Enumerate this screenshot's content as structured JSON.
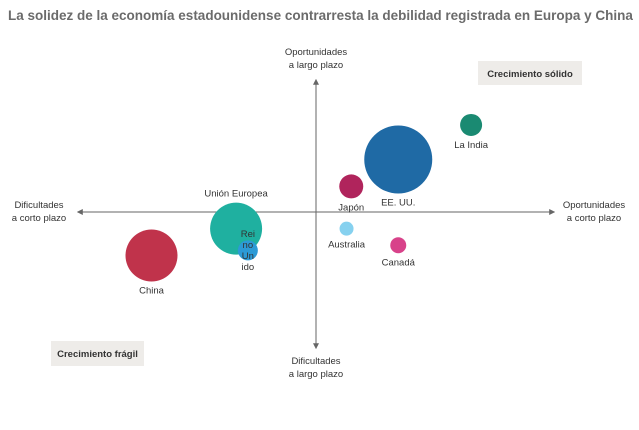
{
  "chart_data": {
    "type": "scatter",
    "title": "La solidez de la economía estadounidense contrarresta la debilidad registrada en Europa y China",
    "axes": {
      "up_line1": "Oportunidades",
      "up_line2": "a largo plazo",
      "down_line1": "Dificultades",
      "down_line2": "a largo plazo",
      "left_line1": "Dificultades",
      "left_line2": "a corto plazo",
      "right_line1": "Oportunidades",
      "right_line2": "a corto plazo"
    },
    "xlim": [
      -10,
      10
    ],
    "ylim": [
      -10,
      10
    ],
    "quadrant_labels": {
      "top_right": "Crecimiento sólido",
      "bottom_left": "Crecimiento frágil"
    },
    "points": [
      {
        "name": "La India",
        "label_lines": [
          "La India"
        ],
        "x": 6.6,
        "y": 6.8,
        "size": 11,
        "color": "#1a8a72",
        "label_pos": "below"
      },
      {
        "name": "EE. UU.",
        "label_lines": [
          "EE. UU."
        ],
        "x": 3.5,
        "y": 4.1,
        "size": 34,
        "color": "#1f6aa5",
        "label_pos": "below"
      },
      {
        "name": "Japón",
        "label_lines": [
          "Japón"
        ],
        "x": 1.5,
        "y": 2.0,
        "size": 12,
        "color": "#b0245c",
        "label_pos": "below"
      },
      {
        "name": "Australia",
        "label_lines": [
          "Australia"
        ],
        "x": 1.3,
        "y": -1.3,
        "size": 7,
        "color": "#86d1ef",
        "label_pos": "below"
      },
      {
        "name": "Canadá",
        "label_lines": [
          "Canadá"
        ],
        "x": 3.5,
        "y": -2.6,
        "size": 8,
        "color": "#d8428a",
        "label_pos": "below"
      },
      {
        "name": "Unión Europea",
        "label_lines": [
          "Unión Europea"
        ],
        "x": -3.4,
        "y": -1.3,
        "size": 26,
        "color": "#1fb0a0",
        "label_pos": "above"
      },
      {
        "name": "Reino Unido",
        "label_lines": [
          "Rei",
          "no",
          "Un",
          "ido"
        ],
        "x": -2.9,
        "y": -3.0,
        "size": 10,
        "color": "#2c9ad6",
        "label_pos": "center"
      },
      {
        "name": "China",
        "label_lines": [
          "China"
        ],
        "x": -7.0,
        "y": -3.4,
        "size": 26,
        "color": "#c0334b",
        "label_pos": "below"
      }
    ]
  }
}
